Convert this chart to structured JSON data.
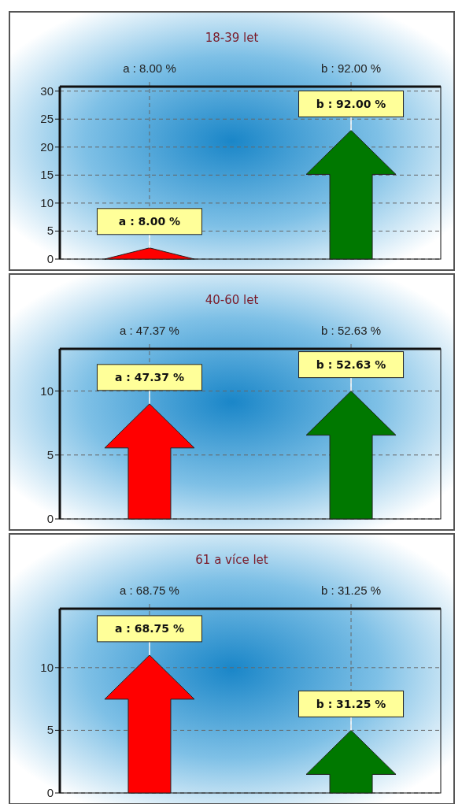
{
  "chart_data": [
    {
      "type": "bar",
      "title": "18-39 let",
      "categories": [
        "a : 8.00 %",
        "b : 92.00 %"
      ],
      "values": [
        2,
        23
      ],
      "colors": [
        "#ff0000",
        "#007800"
      ],
      "annotations": [
        {
          "text": "a : 8.00 %",
          "x": "a : 8.00 %",
          "y": 2
        },
        {
          "text": "b : 92.00 %",
          "x": "b : 92.00 %",
          "y": 23
        }
      ],
      "ylim": [
        0,
        30.8
      ],
      "yticks": [
        0,
        5,
        10,
        15,
        20,
        25,
        30
      ],
      "grid": true
    },
    {
      "type": "bar",
      "title": "40-60 let",
      "categories": [
        "a : 47.37 %",
        "b : 52.63 %"
      ],
      "values": [
        9,
        10
      ],
      "colors": [
        "#ff0000",
        "#007800"
      ],
      "annotations": [
        {
          "text": "a : 47.37 %",
          "x": "a : 47.37 %",
          "y": 9
        },
        {
          "text": "b : 52.63 %",
          "x": "b : 52.63 %",
          "y": 10
        }
      ],
      "ylim": [
        0,
        13.3
      ],
      "yticks": [
        0,
        5,
        10
      ],
      "grid": true
    },
    {
      "type": "bar",
      "title": "61 a více let",
      "categories": [
        "a : 68.75 %",
        "b : 31.25 %"
      ],
      "values": [
        11,
        5
      ],
      "colors": [
        "#ff0000",
        "#007800"
      ],
      "annotations": [
        {
          "text": "a : 68.75 %",
          "x": "a : 68.75 %",
          "y": 11
        },
        {
          "text": "b : 31.25 %",
          "x": "b : 31.25 %",
          "y": 5
        }
      ],
      "ylim": [
        0,
        14.7
      ],
      "yticks": [
        0,
        5,
        10
      ],
      "grid": true
    }
  ]
}
